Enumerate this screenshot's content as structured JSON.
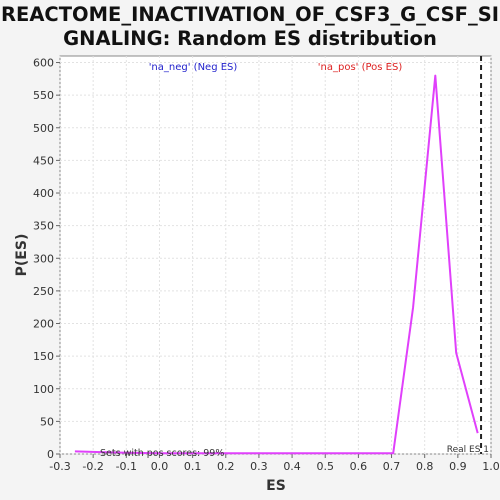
{
  "chart_data": {
    "type": "line",
    "title_line1": "REACTOME_INACTIVATION_OF_CSF3_G_CSF_SI",
    "title_line2": "GNALING: Random ES distribution",
    "xlabel": "ES",
    "ylabel": "P(ES)",
    "xlim": [
      -0.3,
      1.0
    ],
    "ylim": [
      0,
      610
    ],
    "x_ticks": [
      "-0.3",
      "-0.2",
      "-0.1",
      "0.0",
      "0.1",
      "0.2",
      "0.3",
      "0.4",
      "0.5",
      "0.6",
      "0.7",
      "0.8",
      "0.9",
      "1.0"
    ],
    "y_ticks": [
      "0",
      "50",
      "100",
      "150",
      "200",
      "250",
      "300",
      "350",
      "400",
      "450",
      "500",
      "550",
      "600"
    ],
    "grid": true,
    "legend": [
      {
        "label": "'na_neg' (Neg ES)",
        "color": "#2222cc"
      },
      {
        "label": "'na_pos' (Pos ES)",
        "color": "#dd2222"
      }
    ],
    "series": [
      {
        "color": "#e040fb",
        "x": [
          -0.255,
          -0.19,
          -0.1,
          0.0,
          0.1,
          0.2,
          0.3,
          0.4,
          0.5,
          0.6,
          0.705,
          0.765,
          0.832,
          0.895,
          0.96
        ],
        "y": [
          4,
          3,
          2,
          1,
          1,
          1,
          1,
          1,
          1,
          1,
          1,
          225,
          580,
          155,
          32
        ]
      }
    ],
    "real_es": {
      "x": 0.97,
      "label": "Real ES 1"
    },
    "annotation": "Sets with pos scores: 99%"
  }
}
